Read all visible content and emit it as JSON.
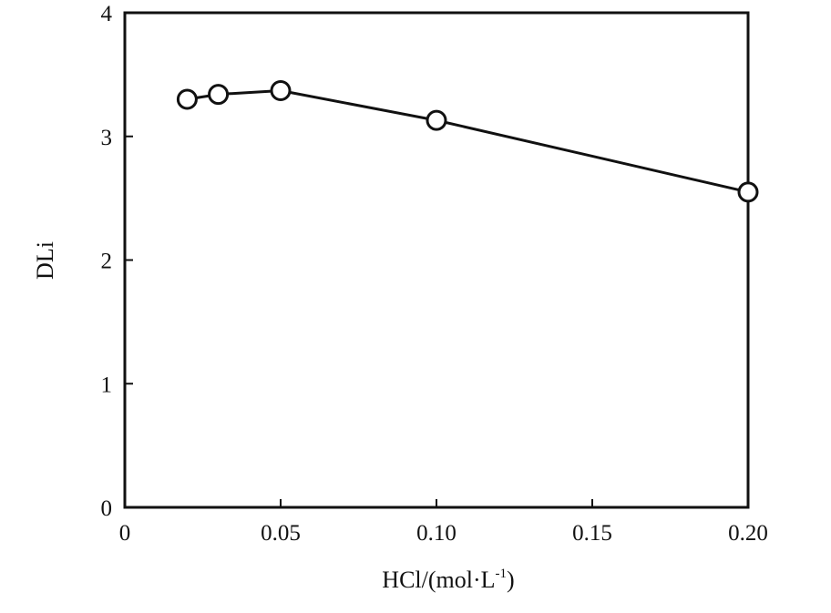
{
  "chart_data": {
    "type": "line",
    "title": "",
    "xlabel": "HCl/(mol·L",
    "xlabel_superscript": "-1",
    "xlabel_suffix": ")",
    "ylabel": "DLi",
    "xlim": [
      0,
      0.2
    ],
    "ylim": [
      0,
      4
    ],
    "x_ticks": [
      0,
      0.05,
      0.1,
      0.15,
      0.2
    ],
    "x_tick_labels": [
      "0",
      "0.05",
      "0.10",
      "0.15",
      "0.20"
    ],
    "y_ticks": [
      0,
      1,
      2,
      3,
      4
    ],
    "y_tick_labels": [
      "0",
      "1",
      "2",
      "3",
      "4"
    ],
    "grid": false,
    "marker": "open-circle",
    "series": [
      {
        "x": [
          0.02,
          0.03,
          0.05,
          0.1,
          0.2
        ],
        "y": [
          3.3,
          3.34,
          3.37,
          3.13,
          2.55
        ]
      }
    ],
    "colors": {
      "line": "#111111",
      "marker_fill": "#ffffff",
      "axis": "#111111"
    }
  }
}
